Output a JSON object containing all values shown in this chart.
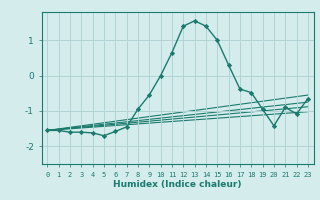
{
  "xlabel": "Humidex (Indice chaleur)",
  "background_color": "#d4ecec",
  "grid_color": "#b2d4d4",
  "line_color": "#1a7a6e",
  "xlim": [
    -0.5,
    23.5
  ],
  "ylim": [
    -2.5,
    1.8
  ],
  "yticks": [
    -2,
    -1,
    0,
    1
  ],
  "xticks": [
    0,
    1,
    2,
    3,
    4,
    5,
    6,
    7,
    8,
    9,
    10,
    11,
    12,
    13,
    14,
    15,
    16,
    17,
    18,
    19,
    20,
    21,
    22,
    23
  ],
  "series": [
    [
      0,
      -1.55
    ],
    [
      1,
      -1.55
    ],
    [
      2,
      -1.6
    ],
    [
      3,
      -1.6
    ],
    [
      4,
      -1.62
    ],
    [
      5,
      -1.7
    ],
    [
      6,
      -1.58
    ],
    [
      7,
      -1.45
    ],
    [
      8,
      -0.95
    ],
    [
      9,
      -0.55
    ],
    [
      10,
      0.0
    ],
    [
      11,
      0.65
    ],
    [
      12,
      1.4
    ],
    [
      13,
      1.55
    ],
    [
      14,
      1.4
    ],
    [
      15,
      1.0
    ],
    [
      16,
      0.3
    ],
    [
      17,
      -0.38
    ],
    [
      18,
      -0.48
    ],
    [
      19,
      -0.95
    ],
    [
      20,
      -1.42
    ],
    [
      21,
      -0.9
    ],
    [
      22,
      -1.08
    ],
    [
      23,
      -0.65
    ]
  ],
  "extra_lines": [
    [
      [
        0,
        -1.55
      ],
      [
        23,
        -0.55
      ]
    ],
    [
      [
        0,
        -1.55
      ],
      [
        23,
        -0.75
      ]
    ],
    [
      [
        0,
        -1.55
      ],
      [
        23,
        -0.88
      ]
    ],
    [
      [
        0,
        -1.55
      ],
      [
        23,
        -1.02
      ]
    ]
  ]
}
